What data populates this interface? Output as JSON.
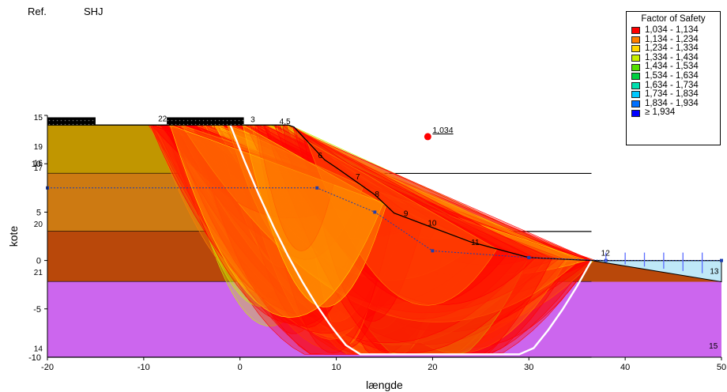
{
  "header": {
    "ref_label": "Ref.",
    "ref_value": "SHJ"
  },
  "legend": {
    "title": "Factor of Safety",
    "items": [
      {
        "label": "1,034 - 1,134",
        "color": "#ff0000"
      },
      {
        "label": "1,134 - 1,234",
        "color": "#ff8000"
      },
      {
        "label": "1,234 - 1,334",
        "color": "#ffd700"
      },
      {
        "label": "1,334 - 1,434",
        "color": "#c8f000"
      },
      {
        "label": "1,434 - 1,534",
        "color": "#55e000"
      },
      {
        "label": "1,534 - 1,634",
        "color": "#00d040"
      },
      {
        "label": "1,634 - 1,734",
        "color": "#00e0b0"
      },
      {
        "label": "1,734 - 1,834",
        "color": "#00c8ff"
      },
      {
        "label": "1,834 - 1,934",
        "color": "#0070ff"
      },
      {
        "label": "≥ 1,934",
        "color": "#0000ff"
      }
    ]
  },
  "chart_data": {
    "type": "scatter",
    "title": "",
    "xlabel": "længde",
    "ylabel": "kote",
    "xlim": [
      -20,
      50
    ],
    "ylim": [
      -10,
      15
    ],
    "x_ticks": [
      -20,
      -10,
      0,
      10,
      20,
      30,
      40,
      50
    ],
    "y_ticks": [
      -5,
      0,
      5,
      10,
      15
    ],
    "critical_center": {
      "x": 19.5,
      "y": 12.8,
      "label": "1,034"
    },
    "critical_circle": {
      "center_x": 19.5,
      "center_y": 12.8,
      "radius": 17.2
    },
    "ground_surface": [
      [
        -20,
        14
      ],
      [
        -9.5,
        14
      ],
      [
        5,
        14
      ],
      [
        5.6,
        13.8
      ],
      [
        8.8,
        10.4
      ],
      [
        10,
        9.6
      ],
      [
        12,
        8.2
      ],
      [
        14,
        6.8
      ],
      [
        16,
        4.9
      ],
      [
        20,
        3.4
      ],
      [
        24,
        1.9
      ],
      [
        30,
        0.3
      ],
      [
        36.5,
        0
      ],
      [
        50,
        0
      ]
    ],
    "water_table": [
      [
        -20,
        7.5
      ],
      [
        8,
        7.5
      ],
      [
        14,
        5
      ],
      [
        20,
        1
      ],
      [
        30,
        0.3
      ],
      [
        38,
        0
      ],
      [
        50,
        0
      ]
    ],
    "layers": [
      {
        "name": "layer-1",
        "color": "#c19600",
        "top": 14,
        "bottom": 9
      },
      {
        "name": "layer-2",
        "color": "#cd7a12",
        "top": 9,
        "bottom": 3
      },
      {
        "name": "layer-3",
        "color": "#b9480a",
        "top": 3,
        "bottom": -2.2
      },
      {
        "name": "layer-4",
        "color": "#cc66ee",
        "top": -2.2,
        "bottom": -10
      }
    ],
    "fos_range": {
      "min": 1.034
    },
    "point_labels": [
      {
        "label": "15",
        "x": -20.5,
        "y": 14.5
      },
      {
        "label": "19",
        "x": -20.5,
        "y": 11.5
      },
      {
        "label": "16",
        "x": -20.5,
        "y": 9.8
      },
      {
        "label": "17",
        "x": -20.5,
        "y": 9.3
      },
      {
        "label": "20",
        "x": -20.5,
        "y": 3.5
      },
      {
        "label": "21",
        "x": -20.5,
        "y": -1.5
      },
      {
        "label": "14",
        "x": -20.5,
        "y": -9.4
      },
      {
        "label": "22",
        "x": -8.5,
        "y": 14.4
      },
      {
        "label": "3",
        "x": 1.1,
        "y": 14.3
      },
      {
        "label": "4,5",
        "x": 4.1,
        "y": 14.1
      },
      {
        "label": "6",
        "x": 8.1,
        "y": 10.6
      },
      {
        "label": "7",
        "x": 12,
        "y": 8.4
      },
      {
        "label": "8",
        "x": 14,
        "y": 6.6
      },
      {
        "label": "9",
        "x": 17,
        "y": 4.6
      },
      {
        "label": "10",
        "x": 19.5,
        "y": 3.6
      },
      {
        "label": "11",
        "x": 24,
        "y": 1.6
      },
      {
        "label": "12",
        "x": 37.5,
        "y": 0.5
      },
      {
        "label": "13",
        "x": 48.8,
        "y": -1.4
      },
      {
        "label": "15",
        "x": 48.7,
        "y": -9.1
      }
    ]
  }
}
